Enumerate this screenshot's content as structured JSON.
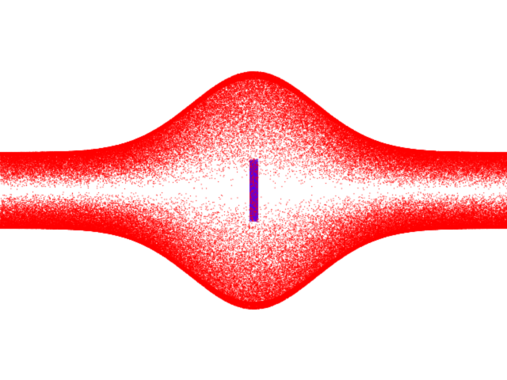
{
  "image": {
    "background_color": "#ffffff",
    "point_color": "#ff0000",
    "center_glow_color": "#4b00ff",
    "shape": "symmetric bell-shaped particle spray (dense red points) with a narrow vertical concentration at center"
  }
}
